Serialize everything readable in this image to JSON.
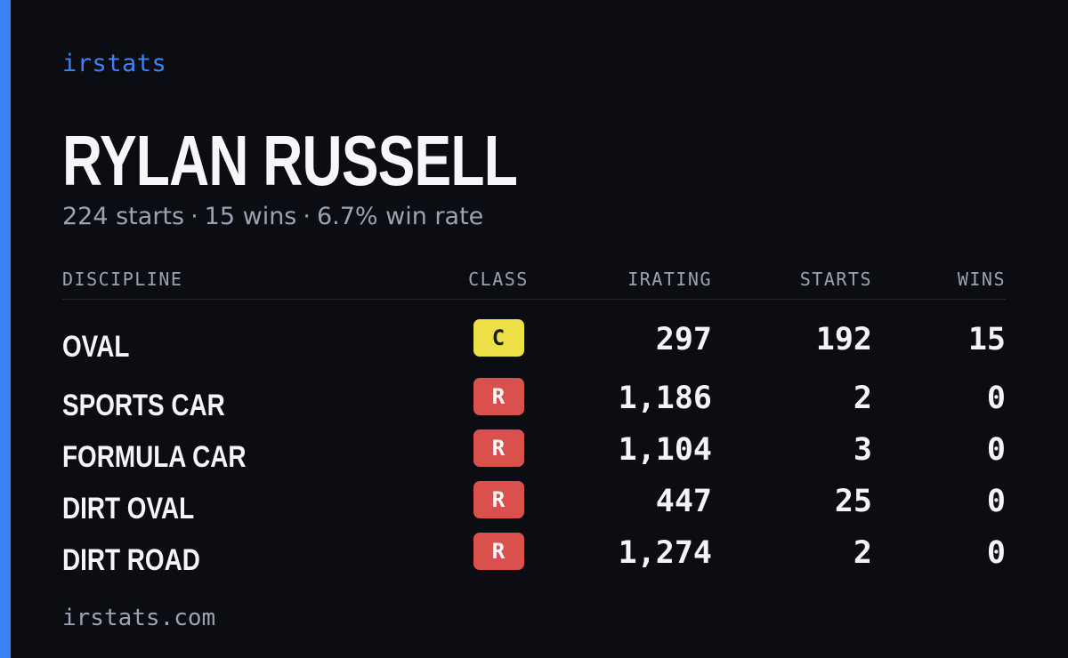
{
  "brand": "irstats",
  "driver": {
    "name": "RYLAN RUSSELL",
    "starts": "224 starts",
    "wins": "15 wins",
    "win_rate": "6.7% win rate",
    "separator": "·"
  },
  "table": {
    "headers": {
      "discipline": "DISCIPLINE",
      "class": "CLASS",
      "irating": "IRATING",
      "starts": "STARTS",
      "wins": "WINS"
    },
    "rows": [
      {
        "discipline": "OVAL",
        "class": "C",
        "irating": "297",
        "starts": "192",
        "wins": "15"
      },
      {
        "discipline": "SPORTS CAR",
        "class": "R",
        "irating": "1,186",
        "starts": "2",
        "wins": "0"
      },
      {
        "discipline": "FORMULA CAR",
        "class": "R",
        "irating": "1,104",
        "starts": "3",
        "wins": "0"
      },
      {
        "discipline": "DIRT OVAL",
        "class": "R",
        "irating": "447",
        "starts": "25",
        "wins": "0"
      },
      {
        "discipline": "DIRT ROAD",
        "class": "R",
        "irating": "1,274",
        "starts": "2",
        "wins": "0"
      }
    ]
  },
  "footer": "irstats.com",
  "colors": {
    "background": "#0b0d13",
    "accent": "#3b82f6",
    "class_c": "#ede047",
    "class_r": "#d9504c"
  }
}
